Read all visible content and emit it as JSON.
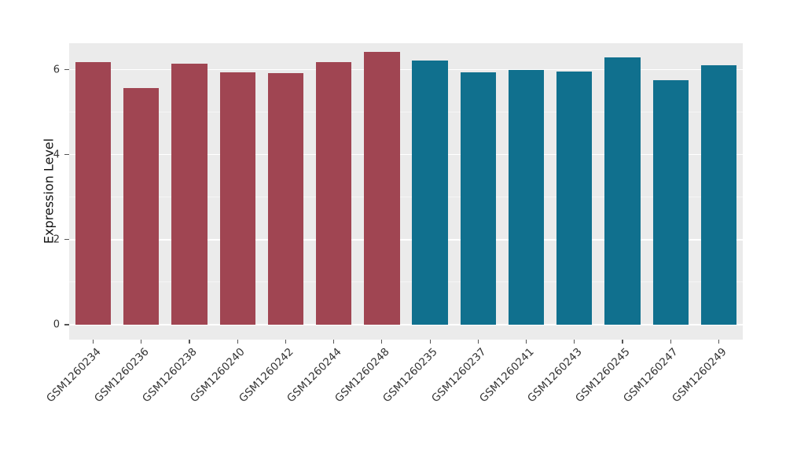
{
  "chart_data": {
    "type": "bar",
    "title": "",
    "xlabel": "",
    "ylabel": "Expression Level",
    "categories": [
      "GSM1260234",
      "GSM1260236",
      "GSM1260238",
      "GSM1260240",
      "GSM1260242",
      "GSM1260244",
      "GSM1260248",
      "GSM1260235",
      "GSM1260237",
      "GSM1260241",
      "GSM1260243",
      "GSM1260245",
      "GSM1260247",
      "GSM1260249"
    ],
    "values": [
      6.18,
      5.57,
      6.14,
      5.93,
      5.91,
      6.17,
      6.42,
      6.22,
      5.93,
      6.0,
      5.95,
      6.29,
      5.76,
      6.11
    ],
    "groups": [
      "group1",
      "group1",
      "group1",
      "group1",
      "group1",
      "group1",
      "group1",
      "group2",
      "group2",
      "group2",
      "group2",
      "group2",
      "group2",
      "group2"
    ],
    "group_colors": {
      "group1": "#A04552",
      "group2": "#10708E"
    },
    "yticks": [
      0,
      2,
      4,
      6
    ],
    "ytick_labels": [
      "0",
      "2",
      "4",
      "6"
    ],
    "minor_gridlines": [
      1,
      3,
      5
    ],
    "ylim": [
      -0.35,
      6.62
    ],
    "grid": "on",
    "legend": "none",
    "plot_background": "#EBEBEB",
    "figure_background": "#FFFFFF",
    "bar_width_fraction": 0.74
  }
}
